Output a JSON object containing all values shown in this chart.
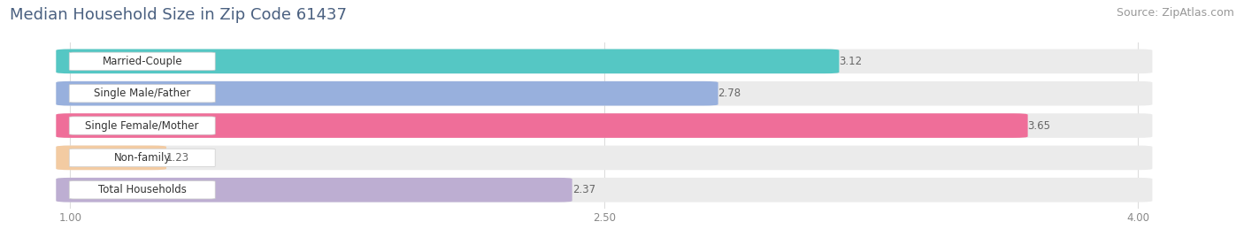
{
  "title": "Median Household Size in Zip Code 61437",
  "source": "Source: ZipAtlas.com",
  "categories": [
    "Married-Couple",
    "Single Male/Father",
    "Single Female/Mother",
    "Non-family",
    "Total Households"
  ],
  "values": [
    3.12,
    2.78,
    3.65,
    1.23,
    2.37
  ],
  "bar_colors": [
    "#45C4C0",
    "#8FAADC",
    "#F06090",
    "#F5C89A",
    "#B8A8D0"
  ],
  "xmin": 1.0,
  "xmax": 4.0,
  "xlim_left": 0.82,
  "xlim_right": 4.28,
  "xticks": [
    1.0,
    2.5,
    4.0
  ],
  "xtick_labels": [
    "1.00",
    "2.50",
    "4.00"
  ],
  "title_fontsize": 13,
  "source_fontsize": 9,
  "label_fontsize": 8.5,
  "value_fontsize": 8.5,
  "background_color": "#ffffff",
  "bar_bg_color": "#ebebeb",
  "title_color": "#4a6080",
  "source_color": "#999999",
  "label_color": "#333333",
  "value_color": "#666666"
}
